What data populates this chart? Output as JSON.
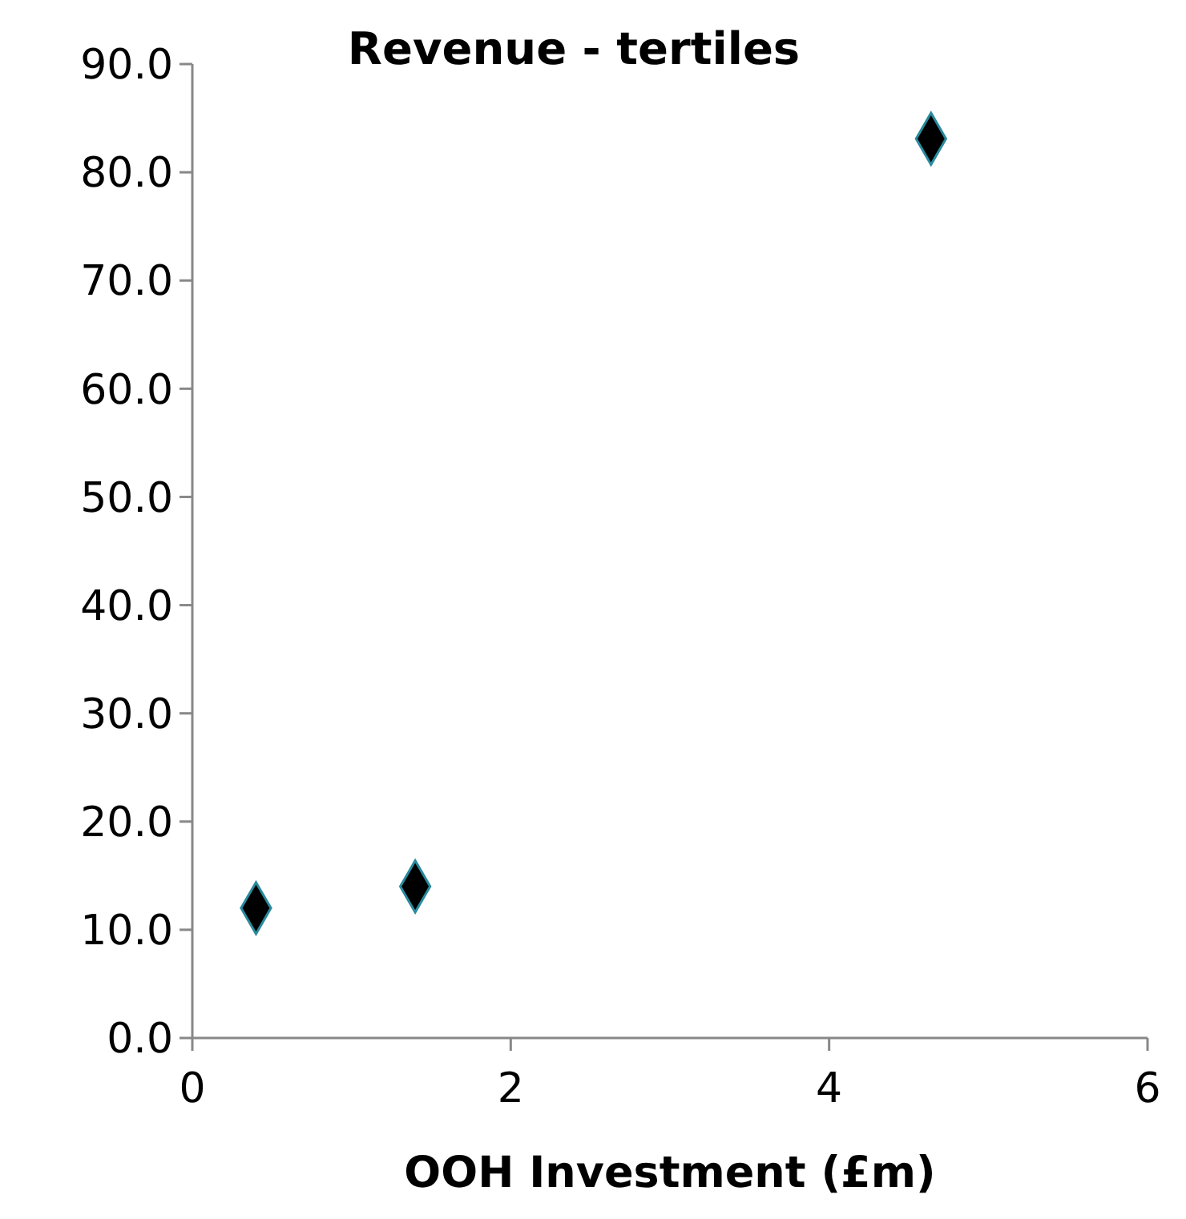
{
  "chart_data": {
    "type": "scatter",
    "title": "Revenue - tertiles",
    "xlabel": "OOH Investment (£m)",
    "x": [
      0.4,
      1.4,
      4.64
    ],
    "values": [
      12.0,
      14.0,
      83.1
    ],
    "color": "#000000",
    "marker": "diamond",
    "xlim": [
      0,
      6
    ],
    "xticks": [
      0,
      2,
      4,
      6
    ],
    "ylim": [
      0,
      90
    ],
    "yticks": [
      {
        "value": 0,
        "label": "0.0"
      },
      {
        "value": 10,
        "label": "10.0"
      },
      {
        "value": 20,
        "label": "20.0"
      },
      {
        "value": 30,
        "label": "30.0"
      },
      {
        "value": 40,
        "label": "40.0"
      },
      {
        "value": 50,
        "label": "50.0"
      },
      {
        "value": 60,
        "label": "60.0"
      },
      {
        "value": 70,
        "label": "70.0"
      },
      {
        "value": 80,
        "label": "80.0"
      },
      {
        "value": 90,
        "label": "90.0"
      }
    ],
    "grid": false
  }
}
